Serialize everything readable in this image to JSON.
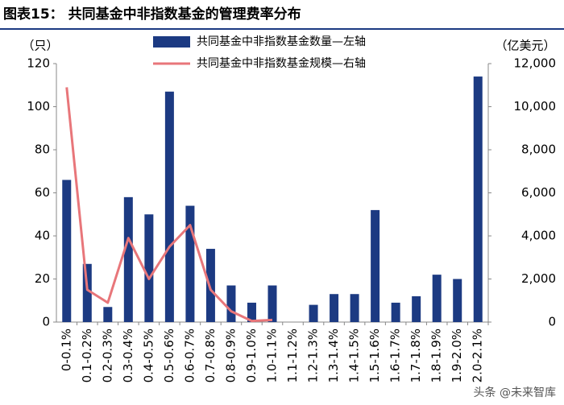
{
  "chart_data": {
    "type": "bar",
    "title": "图表15：  共同基金中非指数基金的管理费率分布",
    "y_label": "（只）",
    "y2_label": "（亿美元）",
    "watermark": "头条 @未来智库",
    "categories": [
      "0-0.1%",
      "0.1-0.2%",
      "0.2-0.3%",
      "0.3-0.4%",
      "0.4-0.5%",
      "0.5-0.6%",
      "0.6-0.7%",
      "0.7-0.8%",
      "0.8-0.9%",
      "0.9-1.0%",
      "1.0-1.1%",
      "1.1-1.2%",
      "1.2-1.3%",
      "1.3-1.4%",
      "1.4-1.5%",
      "1.5-1.6%",
      "1.6-1.7%",
      "1.7-1.8%",
      "1.8-1.9%",
      "1.9-2.0%",
      "2.0-2.1%"
    ],
    "series": [
      {
        "name": "共同基金中非指数基金数量—左轴",
        "type": "bar",
        "color": "#1c3a82",
        "values": [
          66,
          27,
          7,
          58,
          50,
          107,
          54,
          34,
          17,
          9,
          17,
          0,
          8,
          13,
          13,
          52,
          9,
          12,
          22,
          20,
          114
        ]
      },
      {
        "name": "共同基金中非指数基金规模—右轴",
        "type": "line",
        "axis": "y2",
        "color": "#e8767a",
        "values": [
          10900,
          1500,
          900,
          3900,
          2000,
          3500,
          4500,
          1500,
          500,
          50,
          100,
          null,
          null,
          null,
          null,
          null,
          null,
          null,
          null,
          null,
          null
        ]
      }
    ],
    "ylim": [
      0,
      120
    ],
    "yticks": [
      0,
      20,
      40,
      60,
      80,
      100,
      120
    ],
    "y2lim": [
      0,
      12000
    ],
    "y2ticks": [
      0,
      {
        "value": 2000,
        "label": "2,000"
      },
      {
        "value": 4000,
        "label": "4,000"
      },
      {
        "value": 6000,
        "label": "6,000"
      },
      {
        "value": 8000,
        "label": "8,000"
      },
      {
        "value": 10000,
        "label": "10,000"
      },
      {
        "value": 12000,
        "label": "12,000"
      }
    ]
  }
}
